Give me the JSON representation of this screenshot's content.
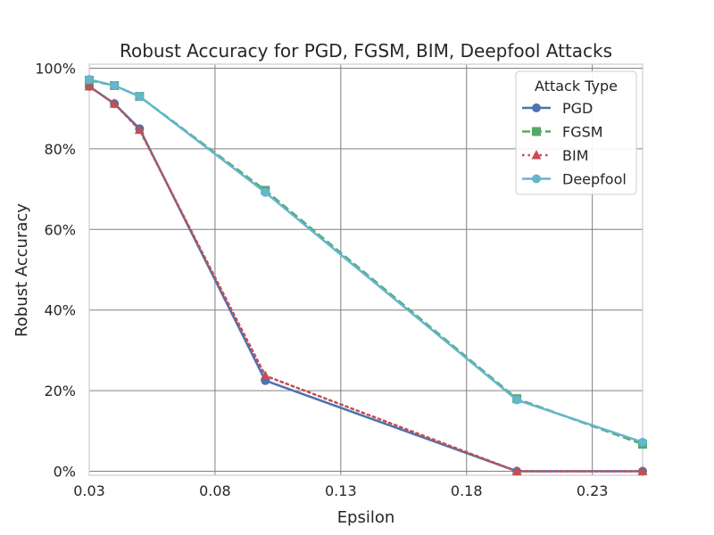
{
  "chart_data": {
    "type": "line",
    "title": "Robust Accuracy for PGD, FGSM, BIM, Deepfool Attacks",
    "xlabel": "Epsilon",
    "ylabel": "Robust Accuracy",
    "xlim": [
      0.03,
      0.25
    ],
    "ylim": [
      -0.01,
      1.01
    ],
    "x_ticks": [
      0.03,
      0.08,
      0.13,
      0.18,
      0.23
    ],
    "x_tick_labels": [
      "0.03",
      "0.08",
      "0.13",
      "0.18",
      "0.23"
    ],
    "y_ticks": [
      0,
      0.2,
      0.4,
      0.6,
      0.8,
      1.0
    ],
    "y_tick_labels": [
      "0%",
      "20%",
      "40%",
      "60%",
      "80%",
      "100%"
    ],
    "grid": true,
    "legend": {
      "title": "Attack Type",
      "placement": "top-right"
    },
    "x": [
      0.03,
      0.04,
      0.05,
      0.1,
      0.2,
      0.25
    ],
    "series": [
      {
        "name": "PGD",
        "color": "#4c72b0",
        "linestyle": "solid",
        "marker": "circle",
        "values": [
          0.955,
          0.912,
          0.85,
          0.225,
          0.0,
          0.0
        ]
      },
      {
        "name": "FGSM",
        "color": "#55a868",
        "linestyle": "dashed",
        "marker": "square",
        "values": [
          0.97,
          0.957,
          0.93,
          0.697,
          0.18,
          0.067
        ]
      },
      {
        "name": "BIM",
        "color": "#c44e52",
        "linestyle": "dotted",
        "marker": "triangle",
        "values": [
          0.955,
          0.912,
          0.847,
          0.237,
          0.0,
          0.0
        ]
      },
      {
        "name": "Deepfool",
        "color": "#64b5cd",
        "linestyle": "solid",
        "marker": "circle",
        "values": [
          0.972,
          0.957,
          0.93,
          0.692,
          0.177,
          0.072
        ]
      }
    ]
  }
}
